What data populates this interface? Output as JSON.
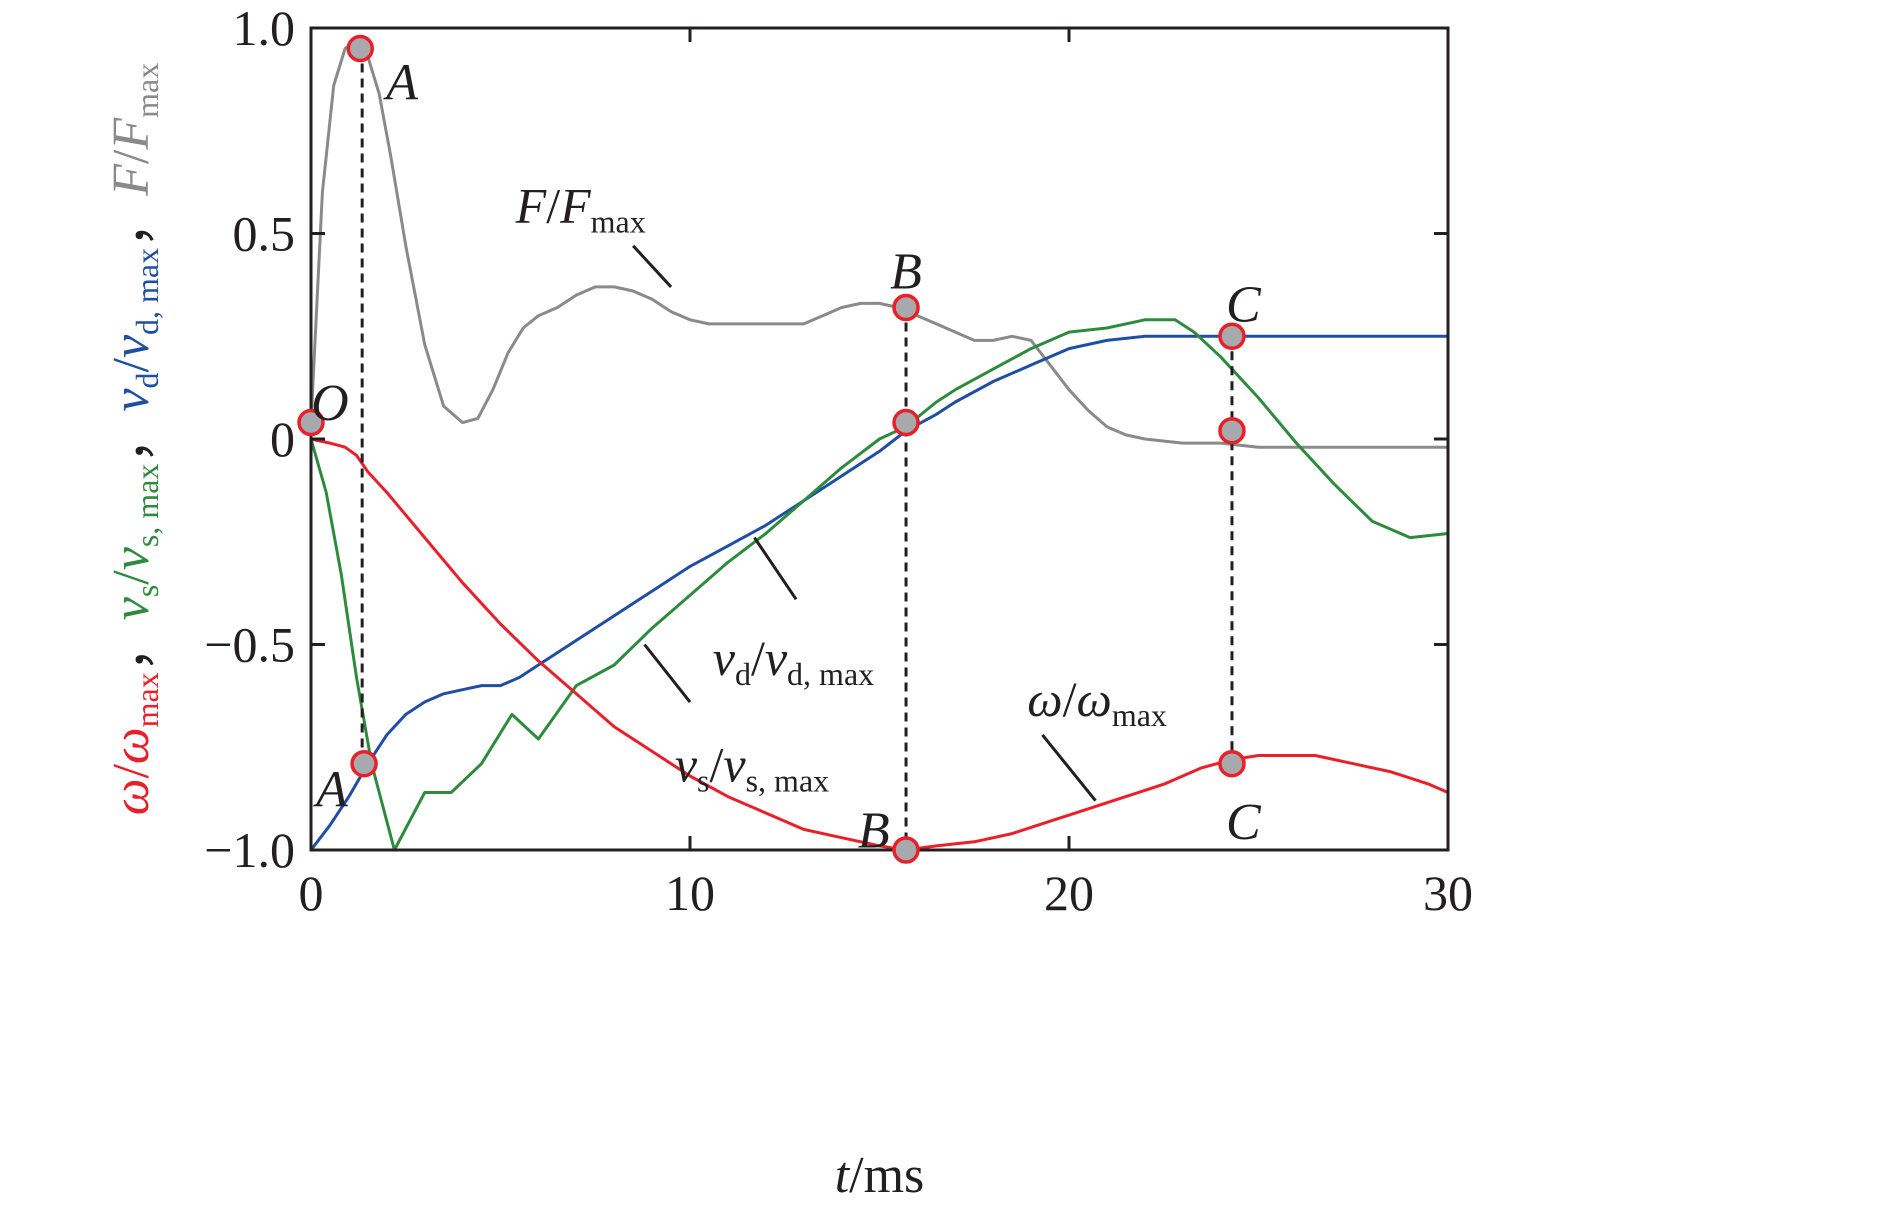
{
  "chart_data": {
    "type": "line",
    "xlabel": {
      "var": "t",
      "unit": "/ms"
    },
    "ylabel": {
      "parts": [
        {
          "num": "ω",
          "num_sub": "",
          "den": "ω",
          "den_sub": "max",
          "color": "#e8202a"
        },
        {
          "num": "v",
          "num_sub": "s",
          "den": "v",
          "den_sub": "s, max",
          "color": "#2e8b3e"
        },
        {
          "num": "v",
          "num_sub": "d",
          "den": "v",
          "den_sub": "d, max",
          "color": "#1f4ea3"
        },
        {
          "num": "F",
          "num_sub": "",
          "den": "F",
          "den_sub": "max",
          "color": "#8a8a8a"
        }
      ],
      "separator": "，"
    },
    "xlim": [
      0,
      30
    ],
    "ylim": [
      -1.0,
      1.0
    ],
    "xticks": [
      0,
      10,
      20,
      30
    ],
    "xtick_labels": [
      "0",
      "10",
      "20",
      "30"
    ],
    "yticks": [
      -1.0,
      -0.5,
      0,
      0.5,
      1.0
    ],
    "ytick_labels": [
      "−1.0",
      "−0.5",
      "0",
      "0.5",
      "1.0"
    ],
    "grid": false,
    "series": [
      {
        "key": "F",
        "color": "#8a8a8a",
        "x": [
          0,
          0.3,
          0.6,
          0.9,
          1.2,
          1.5,
          1.8,
          2.1,
          2.5,
          3.0,
          3.5,
          4.0,
          4.4,
          4.8,
          5.2,
          5.6,
          6.0,
          6.5,
          7.0,
          7.5,
          8.0,
          8.5,
          9.0,
          9.5,
          10.0,
          10.5,
          11.0,
          11.5,
          12.0,
          12.5,
          13.0,
          13.5,
          14.0,
          14.5,
          15.0,
          15.5,
          16.0,
          16.5,
          17.0,
          17.5,
          18.0,
          18.5,
          19.0,
          19.5,
          20.0,
          20.5,
          21.0,
          21.5,
          22.0,
          23.0,
          24.0,
          25.0,
          26.0,
          27.0,
          28.0,
          29.0,
          30.0
        ],
        "y": [
          0.04,
          0.6,
          0.86,
          0.95,
          0.97,
          0.93,
          0.84,
          0.69,
          0.47,
          0.23,
          0.08,
          0.04,
          0.05,
          0.12,
          0.21,
          0.27,
          0.3,
          0.32,
          0.35,
          0.37,
          0.37,
          0.36,
          0.34,
          0.31,
          0.29,
          0.28,
          0.28,
          0.28,
          0.28,
          0.28,
          0.28,
          0.3,
          0.32,
          0.33,
          0.33,
          0.32,
          0.3,
          0.28,
          0.26,
          0.24,
          0.24,
          0.25,
          0.24,
          0.18,
          0.12,
          0.07,
          0.03,
          0.01,
          0.0,
          -0.01,
          -0.01,
          -0.02,
          -0.02,
          -0.02,
          -0.02,
          -0.02,
          -0.02
        ]
      },
      {
        "key": "vd",
        "color": "#1f4ea3",
        "x": [
          0,
          0.5,
          1.0,
          1.5,
          2.0,
          2.5,
          3.0,
          3.5,
          4.0,
          4.5,
          5.0,
          5.5,
          6.0,
          7.0,
          8.0,
          9.0,
          10.0,
          11.0,
          12.0,
          13.0,
          14.0,
          15.0,
          15.7,
          16.5,
          17.0,
          18.0,
          19.0,
          20.0,
          21.0,
          22.0,
          23.0,
          24.0,
          25.0,
          26.0,
          27.0,
          28.0,
          29.0,
          30.0
        ],
        "y": [
          -1.0,
          -0.94,
          -0.87,
          -0.79,
          -0.72,
          -0.67,
          -0.64,
          -0.62,
          -0.61,
          -0.6,
          -0.6,
          -0.58,
          -0.55,
          -0.49,
          -0.43,
          -0.37,
          -0.31,
          -0.26,
          -0.21,
          -0.15,
          -0.09,
          -0.03,
          0.02,
          0.06,
          0.09,
          0.14,
          0.18,
          0.22,
          0.24,
          0.25,
          0.25,
          0.25,
          0.25,
          0.25,
          0.25,
          0.25,
          0.25,
          0.25
        ]
      },
      {
        "key": "vs",
        "color": "#2e8b3e",
        "x": [
          0,
          0.4,
          0.8,
          1.2,
          1.6,
          2.2,
          3.0,
          3.7,
          4.5,
          5.3,
          6.0,
          7.0,
          8.0,
          9.0,
          10.0,
          11.0,
          12.0,
          13.0,
          14.0,
          15.0,
          15.7,
          16.5,
          17.0,
          18.0,
          19.0,
          20.0,
          21.0,
          22.0,
          22.8,
          23.3,
          24.0,
          25.0,
          26.0,
          27.0,
          28.0,
          29.0,
          30.0
        ],
        "y": [
          0.0,
          -0.13,
          -0.33,
          -0.58,
          -0.79,
          -1.0,
          -0.86,
          -0.86,
          -0.79,
          -0.67,
          -0.73,
          -0.6,
          -0.55,
          -0.46,
          -0.38,
          -0.3,
          -0.23,
          -0.15,
          -0.07,
          0.0,
          0.03,
          0.09,
          0.12,
          0.17,
          0.22,
          0.26,
          0.27,
          0.29,
          0.29,
          0.26,
          0.2,
          0.1,
          -0.01,
          -0.11,
          -0.2,
          -0.24,
          -0.23
        ]
      },
      {
        "key": "omega",
        "color": "#e8202a",
        "x": [
          0,
          0.5,
          0.9,
          1.2,
          1.5,
          2.0,
          3.0,
          4.0,
          5.0,
          6.0,
          7.0,
          8.0,
          9.0,
          10.0,
          11.0,
          12.0,
          13.0,
          14.0,
          15.0,
          15.7,
          16.5,
          17.5,
          18.5,
          19.5,
          20.5,
          21.5,
          22.5,
          23.5,
          24.3,
          25.0,
          25.5,
          26.5,
          27.5,
          28.5,
          29.5,
          30.0
        ],
        "y": [
          0.0,
          -0.01,
          -0.02,
          -0.04,
          -0.08,
          -0.13,
          -0.24,
          -0.35,
          -0.45,
          -0.54,
          -0.62,
          -0.7,
          -0.76,
          -0.82,
          -0.87,
          -0.91,
          -0.95,
          -0.97,
          -0.99,
          -1.0,
          -0.99,
          -0.98,
          -0.96,
          -0.93,
          -0.9,
          -0.87,
          -0.84,
          -0.8,
          -0.78,
          -0.77,
          -0.77,
          -0.77,
          -0.79,
          -0.81,
          -0.84,
          -0.86
        ]
      }
    ],
    "markers": [
      {
        "x": 0.0,
        "y": 0.04
      },
      {
        "x": 1.3,
        "y": 0.95
      },
      {
        "x": 1.4,
        "y": -0.79
      },
      {
        "x": 15.7,
        "y": 0.32
      },
      {
        "x": 15.7,
        "y": 0.04
      },
      {
        "x": 15.7,
        "y": -1.0
      },
      {
        "x": 24.3,
        "y": 0.25
      },
      {
        "x": 24.3,
        "y": 0.02
      },
      {
        "x": 24.3,
        "y": -0.79
      }
    ],
    "drop_lines": [
      {
        "x": 1.35,
        "y1": 0.95,
        "y2": -0.79
      },
      {
        "x": 15.7,
        "y1": 0.32,
        "y2": -1.0
      },
      {
        "x": 24.3,
        "y1": 0.25,
        "y2": -0.79
      }
    ],
    "point_labels": [
      {
        "text": "O",
        "x": 0.5,
        "y": 0.09
      },
      {
        "text": "A",
        "x": 2.4,
        "y": 0.87
      },
      {
        "text": "A",
        "x": 0.55,
        "y": -0.85
      },
      {
        "text": "B",
        "x": 15.7,
        "y": 0.41
      },
      {
        "text": "B",
        "x": 14.85,
        "y": -0.95
      },
      {
        "text": "C",
        "x": 24.6,
        "y": 0.33
      },
      {
        "text": "C",
        "x": 24.6,
        "y": -0.93
      }
    ],
    "curve_labels": [
      {
        "series": "F",
        "num": "F",
        "den": "F",
        "sub": "max",
        "x": 5.4,
        "y": 0.57,
        "leader": [
          [
            8.5,
            0.47
          ],
          [
            9.5,
            0.37
          ]
        ]
      },
      {
        "series": "vd",
        "num": "v",
        "num_sub": "d",
        "den": "v",
        "sub": "d, max",
        "x": 10.6,
        "y": -0.53,
        "leader": [
          [
            11.7,
            -0.24
          ],
          [
            12.8,
            -0.39
          ]
        ]
      },
      {
        "series": "vs",
        "num": "v",
        "num_sub": "s",
        "den": "v",
        "sub": "s, max",
        "x": 9.6,
        "y": -0.79,
        "leader": [
          [
            8.8,
            -0.5
          ],
          [
            10.0,
            -0.64
          ]
        ]
      },
      {
        "series": "omega",
        "num": "ω",
        "den": "ω",
        "sub": "max",
        "x": 18.9,
        "y": -0.63,
        "leader": [
          [
            19.3,
            -0.72
          ],
          [
            20.7,
            -0.88
          ]
        ]
      }
    ]
  }
}
